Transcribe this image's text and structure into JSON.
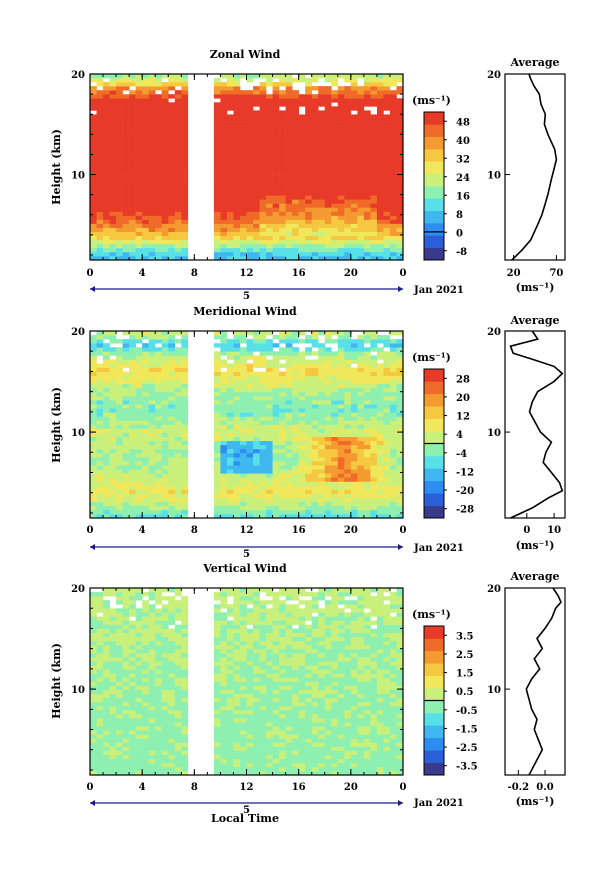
{
  "colors": {
    "scale": [
      "#3a3a8c",
      "#2b5fd9",
      "#2e8df0",
      "#3fb8f0",
      "#57e0e8",
      "#8ef0b0",
      "#c8f07a",
      "#f0e85a",
      "#f5c840",
      "#f59a30",
      "#f06a28",
      "#e83a28"
    ],
    "masked": "#ffffff",
    "contour": "#000000"
  },
  "common": {
    "xlabel": "Local Time",
    "date_label": "Jan 2021",
    "day_label": "5",
    "ylabel": "Height (km)",
    "unit_label": "(ms⁻¹)",
    "avg_unit_label": "(ms⁻¹)",
    "avg_title": "Average"
  },
  "chart_data": [
    {
      "type": "heatmap",
      "title": "Zonal Wind",
      "xlabel": "Local Time",
      "ylabel": "Height (km)",
      "x_ticks": [
        "0",
        "4",
        "8",
        "12",
        "16",
        "20",
        "0"
      ],
      "y_ticks": [
        "20",
        "10"
      ],
      "xlim": [
        0,
        24
      ],
      "ylim": [
        1.5,
        20
      ],
      "gap_hours": [
        7.6,
        9.3
      ],
      "colorbar_ticks": [
        "48",
        "40",
        "32",
        "24",
        "16",
        "8",
        "0",
        "-8"
      ],
      "colorbar_range": [
        -12,
        52
      ],
      "profile_by_height": [
        {
          "h": 1.5,
          "v": 6
        },
        {
          "h": 2.5,
          "v": 14
        },
        {
          "h": 3.2,
          "v": 24
        },
        {
          "h": 4,
          "v": 34
        },
        {
          "h": 5,
          "v": 42
        },
        {
          "h": 6,
          "v": 48
        },
        {
          "h": 8,
          "v": 55
        },
        {
          "h": 10,
          "v": 62
        },
        {
          "h": 12,
          "v": 66
        },
        {
          "h": 14,
          "v": 60
        },
        {
          "h": 16,
          "v": 58
        },
        {
          "h": 17.5,
          "v": 50
        },
        {
          "h": 18.6,
          "v": 40
        },
        {
          "h": 19.2,
          "v": 28
        },
        {
          "h": 20,
          "v": 18
        }
      ],
      "average": {
        "title": "Average",
        "x_ticks": [
          "20",
          "70"
        ],
        "xlim": [
          10,
          80
        ],
        "xlabel": "(ms⁻¹)",
        "height_km": [
          1.5,
          2.5,
          3.5,
          5,
          6,
          8,
          9.5,
          10.5,
          11.5,
          12.5,
          14,
          15,
          16,
          17,
          18,
          18.8,
          19.5,
          20
        ],
        "values": [
          18,
          30,
          40,
          48,
          53,
          60,
          64,
          67,
          70,
          68,
          60,
          56,
          57,
          52,
          50,
          44,
          40,
          38
        ]
      }
    },
    {
      "type": "heatmap",
      "title": "Meridional Wind",
      "xlabel": "Local Time",
      "ylabel": "Height (km)",
      "x_ticks": [
        "0",
        "4",
        "8",
        "12",
        "16",
        "20",
        "0"
      ],
      "y_ticks": [
        "20",
        "10"
      ],
      "xlim": [
        0,
        24
      ],
      "ylim": [
        1.5,
        20
      ],
      "gap_hours": [
        7.6,
        9.3
      ],
      "colorbar_ticks": [
        "28",
        "20",
        "12",
        "4",
        "-4",
        "-12",
        "-20",
        "-28"
      ],
      "colorbar_range": [
        -32,
        32
      ],
      "profile_by_height": [
        {
          "h": 1.5,
          "v": -8
        },
        {
          "h": 3,
          "v": 2
        },
        {
          "h": 4,
          "v": 8
        },
        {
          "h": 6,
          "v": 2
        },
        {
          "h": 8,
          "v": 0
        },
        {
          "h": 10,
          "v": 4
        },
        {
          "h": 12,
          "v": -4
        },
        {
          "h": 14,
          "v": 0
        },
        {
          "h": 16,
          "v": 10
        },
        {
          "h": 17.5,
          "v": 2
        },
        {
          "h": 18.5,
          "v": -10
        },
        {
          "h": 20,
          "v": 4
        }
      ],
      "average": {
        "title": "Average",
        "x_ticks": [
          "0",
          "10"
        ],
        "xlim": [
          -8,
          14
        ],
        "xlabel": "(ms⁻¹)",
        "height_km": [
          1.5,
          2.5,
          3.5,
          4.2,
          5,
          6,
          7,
          8,
          9,
          10,
          11,
          12,
          13,
          14,
          15,
          15.8,
          16.5,
          17.2,
          17.8,
          18.5,
          19.2,
          20
        ],
        "values": [
          -6,
          2,
          8,
          13,
          12,
          9,
          6,
          7,
          9,
          5,
          3,
          1,
          2,
          4,
          10,
          13,
          10,
          2,
          -5,
          -6,
          4,
          2
        ]
      }
    },
    {
      "type": "heatmap",
      "title": "Vertical Wind",
      "xlabel": "Local Time",
      "ylabel": "Height (km)",
      "x_ticks": [
        "0",
        "4",
        "8",
        "12",
        "16",
        "20",
        "0"
      ],
      "y_ticks": [
        "20",
        "10"
      ],
      "xlim": [
        0,
        24
      ],
      "ylim": [
        1.5,
        20
      ],
      "gap_hours": [
        7.6,
        9.3
      ],
      "colorbar_ticks": [
        "3.5",
        "2.5",
        "1.5",
        "0.5",
        "-0.5",
        "-1.5",
        "-2.5",
        "-3.5"
      ],
      "colorbar_range": [
        -4,
        4
      ],
      "profile_by_height": [
        {
          "h": 1.5,
          "v": -0.2
        },
        {
          "h": 10,
          "v": -0.1
        },
        {
          "h": 20,
          "v": 0.2
        }
      ],
      "average": {
        "title": "Average",
        "x_ticks": [
          "-0.2",
          "0.0"
        ],
        "xlim": [
          -0.3,
          0.15
        ],
        "xlabel": "(ms⁻¹)",
        "height_km": [
          1.5,
          3,
          4,
          5,
          6,
          7,
          8,
          9,
          10,
          11,
          12,
          13,
          14,
          15,
          16,
          17,
          18,
          18.6,
          19.2,
          20
        ],
        "values": [
          -0.12,
          -0.06,
          -0.02,
          -0.05,
          -0.08,
          -0.06,
          -0.1,
          -0.12,
          -0.14,
          -0.1,
          -0.04,
          -0.08,
          -0.02,
          -0.06,
          0.0,
          0.05,
          0.08,
          0.12,
          0.1,
          0.06
        ]
      }
    }
  ]
}
